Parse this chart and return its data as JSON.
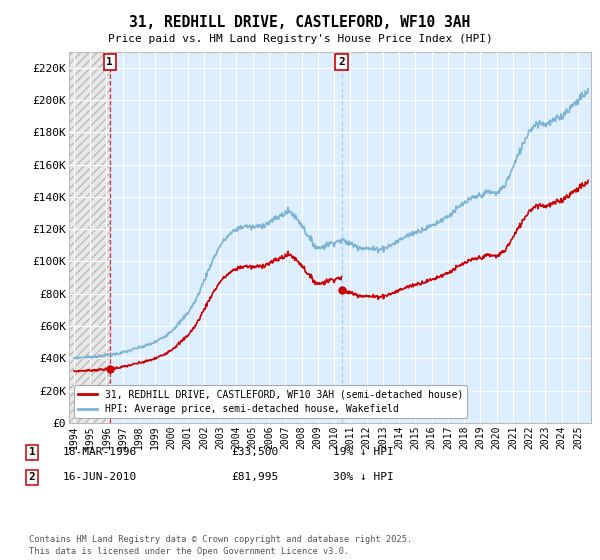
{
  "title": "31, REDHILL DRIVE, CASTLEFORD, WF10 3AH",
  "subtitle": "Price paid vs. HM Land Registry's House Price Index (HPI)",
  "ylabel_ticks": [
    "£0",
    "£20K",
    "£40K",
    "£60K",
    "£80K",
    "£100K",
    "£120K",
    "£140K",
    "£160K",
    "£180K",
    "£200K",
    "£220K"
  ],
  "ytick_values": [
    0,
    20000,
    40000,
    60000,
    80000,
    100000,
    120000,
    140000,
    160000,
    180000,
    200000,
    220000
  ],
  "ylim": [
    0,
    230000
  ],
  "hpi_color": "#7ab3d4",
  "price_color": "#cc0000",
  "vline1_color": "#cc0000",
  "vline2_color": "#aaccee",
  "marker1_date": 1996.21,
  "marker1_price": 33500,
  "marker2_date": 2010.46,
  "marker2_price": 81995,
  "legend_line1": "31, REDHILL DRIVE, CASTLEFORD, WF10 3AH (semi-detached house)",
  "legend_line2": "HPI: Average price, semi-detached house, Wakefield",
  "footnote": "Contains HM Land Registry data © Crown copyright and database right 2025.\nThis data is licensed under the Open Government Licence v3.0.",
  "bg_color": "#ffffff",
  "plot_bg_color": "#ddeeff",
  "hatch_bg_color": "#e8e8e8",
  "grid_color": "#ffffff",
  "xmin": 1993.7,
  "xmax": 2025.8,
  "table_row1_date": "18-MAR-1996",
  "table_row1_price": "£33,500",
  "table_row1_hpi": "19% ↓ HPI",
  "table_row2_date": "16-JUN-2010",
  "table_row2_price": "£81,995",
  "table_row2_hpi": "30% ↓ HPI"
}
